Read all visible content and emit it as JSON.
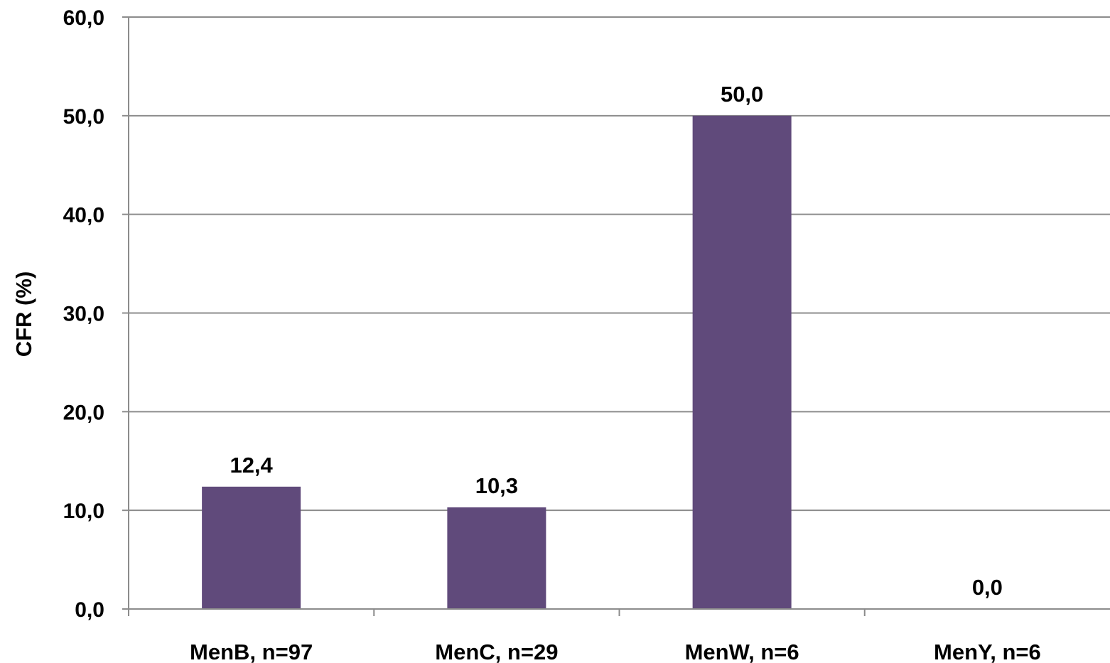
{
  "chart_data": {
    "type": "bar",
    "categories": [
      "MenB, n=97",
      "MenC, n=29",
      "MenW, n=6",
      "MenY, n=6"
    ],
    "values": [
      12.4,
      10.3,
      50.0,
      0.0
    ],
    "data_labels": [
      "12,4",
      "10,3",
      "50,0",
      "0,0"
    ],
    "ylabel": "CFR (%)",
    "xlabel": "",
    "ylim": [
      0,
      60
    ],
    "yticks": [
      0,
      10,
      20,
      30,
      40,
      50,
      60
    ],
    "ytick_labels": [
      "0,0",
      "10,0",
      "20,0",
      "30,0",
      "40,0",
      "50,0",
      "60,0"
    ],
    "grid": true,
    "legend": "none",
    "bar_color": "#604a7b",
    "grid_color": "#8c8c8c"
  }
}
